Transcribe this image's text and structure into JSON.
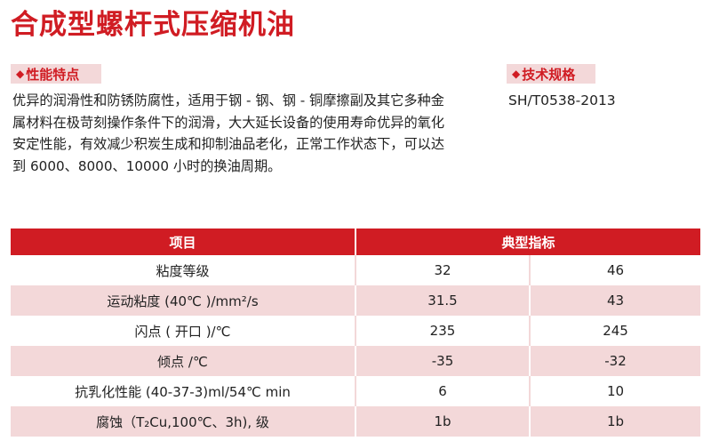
{
  "title": "合成型螺杆式压缩机油",
  "performance": {
    "tag_label": "性能特点",
    "description": "优异的润滑性和防锈防腐性，适用于钢 - 钢、钢 - 铜摩擦副及其它多种金属材料在极苛刻操作条件下的润滑，大大延长设备的使用寿命优异的氧化安定性能，有效减少积炭生成和抑制油品老化，正常工作状态下，可以达到 6000、8000、10000 小时的换油周期。"
  },
  "specification": {
    "tag_label": "技术规格",
    "value": "SH/T0538-2013"
  },
  "table": {
    "header_item": "项目",
    "header_value": "典型指标",
    "rows": [
      {
        "item": "粘度等级",
        "v1": "32",
        "v2": "46"
      },
      {
        "item": "运动粘度 (40℃ )/mm²/s",
        "v1": "31.5",
        "v2": "43"
      },
      {
        "item": "闪点 ( 开口 )/℃",
        "v1": "235",
        "v2": "245"
      },
      {
        "item": "倾点 /℃",
        "v1": "-35",
        "v2": "-32"
      },
      {
        "item": "抗乳化性能 (40-37-3)ml/54℃ min",
        "v1": "6",
        "v2": "10"
      },
      {
        "item": "腐蚀（T₂Cu,100℃、3h), 级",
        "v1": "1b",
        "v2": "1b"
      }
    ]
  },
  "colors": {
    "accent": "#d01c23",
    "tint": "#f3d8d9"
  },
  "icons": {
    "tag_marker": "diamond-icon"
  }
}
